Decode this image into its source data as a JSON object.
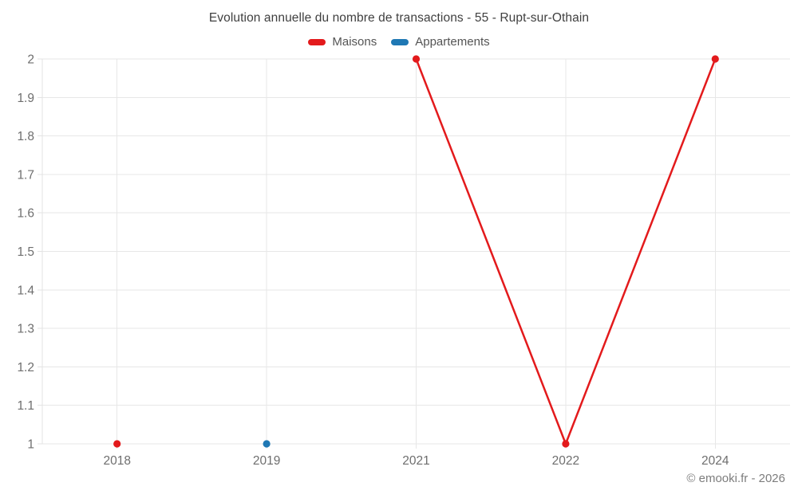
{
  "chart_data": {
    "type": "line",
    "title": "Evolution annuelle du nombre de transactions - 55 - Rupt-sur-Othain",
    "categories": [
      "2018",
      "2019",
      "2021",
      "2022",
      "2024"
    ],
    "series": [
      {
        "name": "Maisons",
        "color": "#e31a1c",
        "values": [
          1,
          null,
          2,
          1,
          2
        ]
      },
      {
        "name": "Appartements",
        "color": "#1f78b4",
        "values": [
          null,
          1,
          null,
          null,
          null
        ]
      }
    ],
    "ylim": [
      1,
      2
    ],
    "ytick_step": 0.1,
    "ytick_labels": [
      "1",
      "1.1",
      "1.2",
      "1.3",
      "1.4",
      "1.5",
      "1.6",
      "1.7",
      "1.8",
      "1.9",
      "2"
    ],
    "grid": true,
    "legend_position": "top",
    "span_gaps": false,
    "point_style": "filled-circle"
  },
  "footer": {
    "credit": "© emooki.fr - 2026"
  }
}
